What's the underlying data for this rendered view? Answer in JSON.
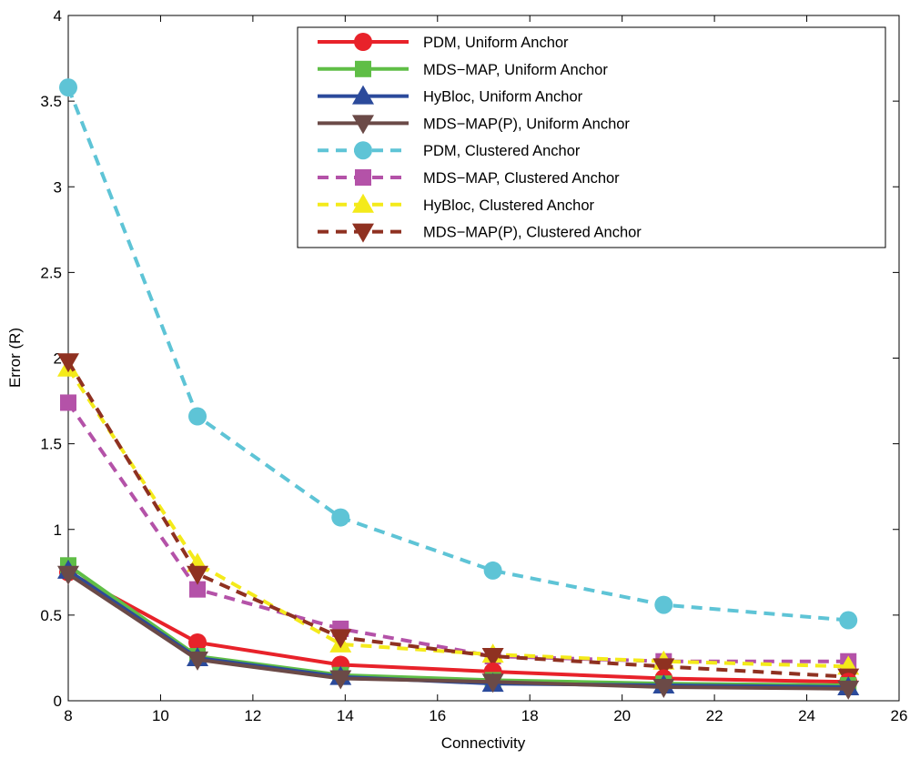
{
  "chart_data": {
    "type": "line",
    "title": "",
    "xlabel": "Connectivity",
    "ylabel": "Error (R)",
    "xlim": [
      8,
      26
    ],
    "ylim": [
      0,
      4
    ],
    "xticks": [
      8,
      10,
      12,
      14,
      16,
      18,
      20,
      22,
      24,
      26
    ],
    "yticks": [
      0,
      0.5,
      1,
      1.5,
      2,
      2.5,
      3,
      3.5,
      4
    ],
    "ytick_labels": [
      "0",
      "0.5",
      "1",
      "1.5",
      "2",
      "2.5",
      "3",
      "3.5",
      "4"
    ],
    "legend_position": "top-right",
    "grid": false,
    "series": [
      {
        "name": "PDM, Uniform Anchor",
        "color": "#e8222a",
        "dash": "solid",
        "marker": "circle",
        "x": [
          8,
          10.8,
          13.9,
          17.2,
          20.9,
          24.9
        ],
        "y": [
          0.75,
          0.34,
          0.21,
          0.17,
          0.13,
          0.11
        ]
      },
      {
        "name": "MDS−MAP, Uniform Anchor",
        "color": "#5fbe46",
        "dash": "solid",
        "marker": "square",
        "x": [
          8,
          10.8,
          13.9,
          17.2,
          20.9,
          24.9
        ],
        "y": [
          0.79,
          0.26,
          0.15,
          0.12,
          0.1,
          0.09
        ]
      },
      {
        "name": "HyBloc, Uniform Anchor",
        "color": "#2b4a9b",
        "dash": "solid",
        "marker": "triangle-up",
        "x": [
          8,
          10.8,
          13.9,
          17.2,
          20.9,
          24.9
        ],
        "y": [
          0.76,
          0.25,
          0.14,
          0.1,
          0.09,
          0.08
        ]
      },
      {
        "name": "MDS−MAP(P), Uniform Anchor",
        "color": "#6b4a47",
        "dash": "solid",
        "marker": "triangle-down",
        "x": [
          8,
          10.8,
          13.9,
          17.2,
          20.9,
          24.9
        ],
        "y": [
          0.74,
          0.24,
          0.13,
          0.11,
          0.08,
          0.07
        ]
      },
      {
        "name": "PDM, Clustered Anchor",
        "color": "#5ec4d6",
        "dash": "dashed",
        "marker": "circle",
        "x": [
          8,
          10.8,
          13.9,
          17.2,
          20.9,
          24.9
        ],
        "y": [
          3.58,
          1.66,
          1.07,
          0.76,
          0.56,
          0.47
        ]
      },
      {
        "name": "MDS−MAP, Clustered Anchor",
        "color": "#b452a8",
        "dash": "dashed",
        "marker": "square",
        "x": [
          8,
          10.8,
          13.9,
          17.2,
          20.9,
          24.9
        ],
        "y": [
          1.74,
          0.65,
          0.42,
          0.26,
          0.23,
          0.23
        ]
      },
      {
        "name": "HyBloc, Clustered Anchor",
        "color": "#f4ea1a",
        "dash": "dashed",
        "marker": "triangle-up",
        "x": [
          8,
          10.8,
          13.9,
          17.2,
          20.9,
          24.9
        ],
        "y": [
          1.94,
          0.8,
          0.33,
          0.27,
          0.23,
          0.2
        ]
      },
      {
        "name": "MDS−MAP(P), Clustered Anchor",
        "color": "#8f3121",
        "dash": "dashed",
        "marker": "triangle-down",
        "x": [
          8,
          10.8,
          13.9,
          17.2,
          20.9,
          24.9
        ],
        "y": [
          1.98,
          0.74,
          0.37,
          0.26,
          0.2,
          0.14
        ]
      }
    ]
  }
}
